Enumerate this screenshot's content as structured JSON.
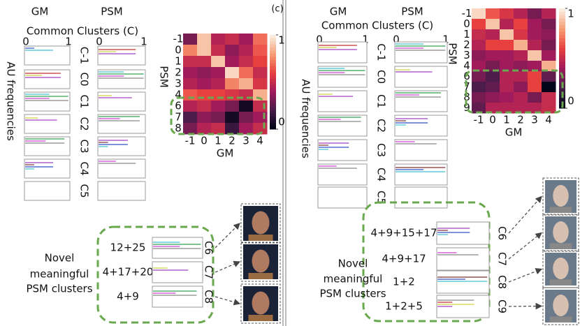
{
  "panel_label": "(c)",
  "panels": [
    {
      "gm_title": "GM",
      "psm_title": "PSM",
      "common_title": "Common Clusters (C)",
      "axis_min": "0",
      "axis_max": "1",
      "y_label": "AU frequencies",
      "common_clusters": [
        "C-1",
        "C0",
        "C1",
        "C2",
        "C3",
        "C4",
        "C5"
      ],
      "heatmap": {
        "rows": [
          "-1",
          "0",
          "1",
          "2",
          "3",
          "4",
          "6",
          "7",
          "8"
        ],
        "cols": [
          "-1",
          "0",
          "1",
          "2",
          "3",
          "4"
        ],
        "matrix": [
          [
            0.3,
            0.9,
            0.45,
            0.5,
            0.4,
            0.7
          ],
          [
            0.75,
            0.9,
            0.5,
            0.35,
            0.45,
            0.65
          ],
          [
            0.5,
            0.5,
            0.9,
            0.4,
            0.5,
            0.6
          ],
          [
            0.4,
            0.35,
            0.4,
            0.95,
            0.7,
            0.5
          ],
          [
            0.45,
            0.4,
            0.45,
            0.75,
            0.85,
            0.55
          ],
          [
            0.65,
            0.6,
            0.6,
            0.55,
            0.5,
            0.85
          ],
          [
            0.45,
            0.5,
            0.4,
            0.3,
            0.05,
            0.5
          ],
          [
            0.2,
            0.35,
            0.3,
            0.05,
            0.3,
            0.4
          ],
          [
            0.3,
            0.45,
            0.5,
            0.15,
            0.4,
            0.5
          ]
        ],
        "x_label": "GM",
        "y_label": "PSM",
        "colorbar_ticks": [
          0,
          1
        ]
      },
      "novel_label": [
        "Novel",
        "meaningful",
        "PSM clusters"
      ],
      "novel_clusters": [
        {
          "au": "12+25",
          "label": "C6"
        },
        {
          "au": "4+17+20",
          "label": "C7"
        },
        {
          "au": "4+9",
          "label": "C8"
        }
      ]
    },
    {
      "gm_title": "GM",
      "psm_title": "PSM",
      "common_title": "Common Clusters (C)",
      "axis_min": "0",
      "axis_max": "1",
      "y_label": "AU frequencies",
      "common_clusters": [
        "C-1",
        "C0",
        "C1",
        "C2",
        "C3",
        "C4",
        "C5"
      ],
      "heatmap": {
        "rows": [
          "-1",
          "0",
          "1",
          "2",
          "3",
          "4",
          "6",
          "7",
          "8",
          "9"
        ],
        "cols": [
          "-1",
          "0",
          "1",
          "2",
          "3",
          "4"
        ],
        "matrix": [
          [
            0.95,
            0.65,
            0.55,
            0.45,
            0.3,
            0.45
          ],
          [
            0.6,
            0.9,
            0.45,
            0.6,
            0.4,
            0.3
          ],
          [
            0.5,
            0.45,
            0.9,
            0.55,
            0.4,
            0.35
          ],
          [
            0.45,
            0.6,
            0.6,
            0.85,
            0.45,
            0.3
          ],
          [
            0.35,
            0.4,
            0.4,
            0.45,
            0.9,
            0.4
          ],
          [
            0.4,
            0.3,
            0.4,
            0.35,
            0.4,
            0.85
          ],
          [
            0.3,
            0.2,
            0.45,
            0.45,
            0.6,
            0.25
          ],
          [
            0.2,
            0.25,
            0.45,
            0.35,
            0.6,
            0.0
          ],
          [
            0.3,
            0.35,
            0.4,
            0.45,
            0.3,
            0.5
          ],
          [
            0.25,
            0.45,
            0.45,
            0.45,
            0.45,
            0.5
          ]
        ],
        "x_label": "GM",
        "y_label": "PSM",
        "colorbar_ticks": [
          0,
          1
        ]
      },
      "novel_label": [
        "Novel",
        "meaningful",
        "PSM clusters"
      ],
      "novel_clusters": [
        {
          "au": "4+9+15+17",
          "label": "C6"
        },
        {
          "au": "4+9+17",
          "label": "C7"
        },
        {
          "au": "1+2",
          "label": "C8"
        },
        {
          "au": "1+2+5",
          "label": "C9"
        }
      ]
    }
  ]
}
